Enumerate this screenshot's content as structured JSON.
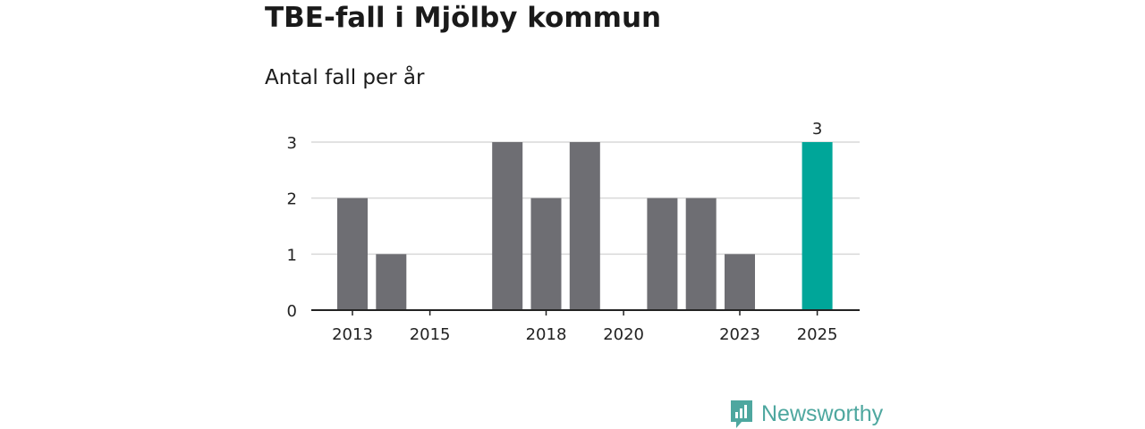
{
  "chart_data": {
    "type": "bar",
    "title": "TBE-fall i Mjölby kommun",
    "subtitle": "Antal fall per år",
    "x": [
      2013,
      2014,
      2015,
      2016,
      2017,
      2018,
      2019,
      2020,
      2021,
      2022,
      2023,
      2024,
      2025
    ],
    "values": [
      2,
      1,
      0,
      0,
      3,
      2,
      3,
      0,
      2,
      2,
      1,
      0,
      3
    ],
    "x_tick_labels": [
      "2013",
      "2015",
      "2018",
      "2020",
      "2023",
      "2025"
    ],
    "y_ticks": [
      0,
      1,
      2,
      3
    ],
    "ylim": [
      0,
      3
    ],
    "grid": true,
    "highlight": {
      "x": 2025,
      "label": "3"
    },
    "colors": {
      "bar": "#6e6e73",
      "highlight": "#00a699",
      "grid": "#d9d9d9",
      "axis": "#222222"
    }
  },
  "brand": {
    "name": "Newsworthy",
    "icon": "chart-icon",
    "color": "#4ea79f"
  }
}
